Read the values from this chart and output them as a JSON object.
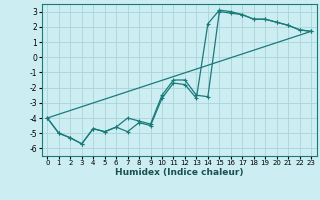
{
  "xlabel": "Humidex (Indice chaleur)",
  "background_color": "#cceef2",
  "grid_color": "#aad4d8",
  "line_color": "#1a7a7a",
  "xlim": [
    -0.5,
    23.5
  ],
  "ylim": [
    -6.5,
    3.5
  ],
  "xticks": [
    0,
    1,
    2,
    3,
    4,
    5,
    6,
    7,
    8,
    9,
    10,
    11,
    12,
    13,
    14,
    15,
    16,
    17,
    18,
    19,
    20,
    21,
    22,
    23
  ],
  "yticks": [
    -6,
    -5,
    -4,
    -3,
    -2,
    -1,
    0,
    1,
    2,
    3
  ],
  "line1_x": [
    0,
    1,
    2,
    3,
    4,
    5,
    6,
    7,
    8,
    9,
    10,
    11,
    12,
    13,
    14,
    15,
    16,
    17,
    18,
    19,
    20,
    21,
    22,
    23
  ],
  "line1_y": [
    -4.0,
    -5.0,
    -5.3,
    -5.7,
    -4.7,
    -4.9,
    -4.6,
    -4.0,
    -4.2,
    -4.4,
    -2.5,
    -1.5,
    -1.5,
    -2.5,
    -2.6,
    3.0,
    2.9,
    2.8,
    2.5,
    2.5,
    2.3,
    2.1,
    1.8,
    1.7
  ],
  "line2_x": [
    0,
    1,
    2,
    3,
    4,
    5,
    6,
    7,
    8,
    9,
    10,
    11,
    12,
    13,
    14,
    15,
    16,
    17,
    18,
    19,
    20,
    21,
    22,
    23
  ],
  "line2_y": [
    -4.0,
    -5.0,
    -5.3,
    -5.7,
    -4.7,
    -4.9,
    -4.6,
    -4.9,
    -4.3,
    -4.5,
    -2.7,
    -1.7,
    -1.8,
    -2.7,
    2.2,
    3.1,
    3.0,
    2.8,
    2.5,
    2.5,
    2.3,
    2.1,
    1.8,
    1.7
  ],
  "line3_x": [
    0,
    23
  ],
  "line3_y": [
    -4.0,
    1.7
  ]
}
